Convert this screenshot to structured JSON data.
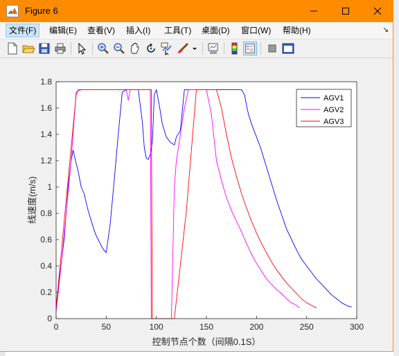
{
  "window": {
    "title": "Figure 6",
    "icon": "matlab-icon",
    "controls": [
      "minimize-icon",
      "maximize-icon",
      "close-icon"
    ]
  },
  "menu": {
    "items": [
      "文件(F)",
      "编辑(E)",
      "查看(V)",
      "插入(I)",
      "工具(T)",
      "桌面(D)",
      "窗口(W)",
      "帮助(H)"
    ],
    "active_index": 0,
    "overflow_arrow": "↘"
  },
  "toolbar": {
    "buttons": [
      "new-figure-icon",
      "open-file-icon",
      "save-icon",
      "print-icon",
      "pointer-icon",
      "zoom-in-icon",
      "zoom-out-icon",
      "pan-icon",
      "rotate-3d-icon",
      "data-cursor-icon",
      "brush-icon",
      "brush-dropdown-icon",
      "link-plot-icon",
      "colorbar-icon",
      "legend-icon",
      "hide-plot-tools-icon",
      "show-plot-tools-icon"
    ]
  },
  "colors": {
    "titlebar": "#ff8c00",
    "agv1": "#0000ff",
    "agv2": "#ff00ff",
    "agv3": "#ff0000"
  },
  "chart_data": {
    "type": "line",
    "xlabel": "控制节点个数（间隔0.1S）",
    "ylabel": "线速度(m/s)",
    "xlim": [
      0,
      300
    ],
    "ylim": [
      0,
      1.8
    ],
    "xticks": [
      "0",
      "50",
      "100",
      "150",
      "200",
      "250",
      "300"
    ],
    "yticks": [
      "0",
      "0.2",
      "0.4",
      "0.6",
      "0.8",
      "1",
      "1.2",
      "1.4",
      "1.6",
      "1.8"
    ],
    "grid": false,
    "legend_position": "top-right",
    "series": [
      {
        "name": "AGV1",
        "x": [
          0,
          8,
          12,
          15,
          17,
          20,
          22,
          25,
          28,
          30,
          32,
          34,
          36,
          38,
          40,
          42,
          44,
          46,
          48,
          50,
          54,
          58,
          62,
          66,
          70,
          74,
          78,
          82,
          86,
          88,
          90,
          92,
          94,
          96,
          98,
          100,
          103,
          106,
          110,
          114,
          118,
          120,
          124,
          128,
          132,
          136,
          140,
          150,
          160,
          170,
          180,
          185,
          188,
          190,
          192,
          195,
          198,
          200,
          204,
          208,
          212,
          216,
          220,
          225,
          230,
          235,
          240,
          245,
          250,
          255,
          260,
          265,
          270,
          275,
          280,
          285,
          290,
          293,
          295
        ],
        "y": [
          0.1,
          0.6,
          1.0,
          1.2,
          1.28,
          1.18,
          1.12,
          1.0,
          0.95,
          0.88,
          0.82,
          0.77,
          0.72,
          0.67,
          0.63,
          0.6,
          0.57,
          0.54,
          0.52,
          0.5,
          0.72,
          1.05,
          1.4,
          1.72,
          1.74,
          1.74,
          1.74,
          1.74,
          1.5,
          1.3,
          1.22,
          1.21,
          1.25,
          1.34,
          1.7,
          1.74,
          1.62,
          1.48,
          1.38,
          1.34,
          1.32,
          1.38,
          1.43,
          1.74,
          1.74,
          1.74,
          1.74,
          1.74,
          1.74,
          1.74,
          1.74,
          1.74,
          1.7,
          1.62,
          1.55,
          1.48,
          1.42,
          1.38,
          1.3,
          1.2,
          1.1,
          1.0,
          0.9,
          0.79,
          0.68,
          0.6,
          0.52,
          0.45,
          0.4,
          0.35,
          0.3,
          0.26,
          0.22,
          0.18,
          0.15,
          0.12,
          0.1,
          0.09,
          0.09
        ]
      },
      {
        "name": "AGV2",
        "x": [
          0,
          5,
          10,
          15,
          20,
          25,
          30,
          40,
          50,
          60,
          70,
          72,
          74,
          76,
          78,
          85,
          90,
          92,
          94,
          95,
          96,
          97,
          100,
          105,
          110,
          112,
          115,
          118,
          120,
          122,
          125,
          128,
          132,
          136,
          140,
          145,
          150,
          155,
          160,
          165,
          170,
          175,
          180,
          185,
          190,
          195,
          200,
          205,
          210,
          215,
          220,
          225,
          230,
          235,
          240,
          243
        ],
        "y": [
          0.05,
          0.4,
          0.8,
          1.2,
          1.72,
          1.74,
          1.74,
          1.74,
          1.74,
          1.74,
          1.74,
          1.66,
          1.74,
          1.74,
          1.74,
          1.74,
          1.74,
          1.74,
          1.74,
          0.0,
          0.0,
          0.0,
          0.0,
          0.0,
          0.0,
          0.0,
          0.0,
          1.0,
          1.2,
          1.3,
          1.45,
          1.6,
          1.74,
          1.74,
          1.74,
          1.74,
          1.74,
          1.55,
          1.2,
          1.05,
          0.92,
          0.82,
          0.74,
          0.66,
          0.57,
          0.49,
          0.42,
          0.36,
          0.3,
          0.26,
          0.22,
          0.19,
          0.15,
          0.12,
          0.1,
          0.08
        ]
      },
      {
        "name": "AGV3",
        "x": [
          0,
          10,
          20,
          22,
          30,
          40,
          50,
          60,
          70,
          80,
          90,
          95,
          96,
          97,
          100,
          110,
          118,
          130,
          140,
          145,
          150,
          155,
          160,
          165,
          170,
          175,
          180,
          185,
          190,
          195,
          200,
          205,
          210,
          215,
          220,
          225,
          230,
          235,
          240,
          245,
          250,
          255,
          260
        ],
        "y": [
          0.08,
          0.9,
          1.7,
          1.74,
          1.74,
          1.74,
          1.74,
          1.74,
          1.74,
          1.74,
          1.74,
          1.74,
          0.0,
          0.0,
          0.0,
          0.0,
          0.0,
          0.82,
          1.74,
          1.74,
          1.74,
          1.74,
          1.74,
          1.6,
          1.4,
          1.22,
          1.08,
          0.95,
          0.84,
          0.74,
          0.65,
          0.57,
          0.5,
          0.43,
          0.37,
          0.32,
          0.27,
          0.23,
          0.19,
          0.15,
          0.12,
          0.1,
          0.08
        ]
      }
    ]
  }
}
